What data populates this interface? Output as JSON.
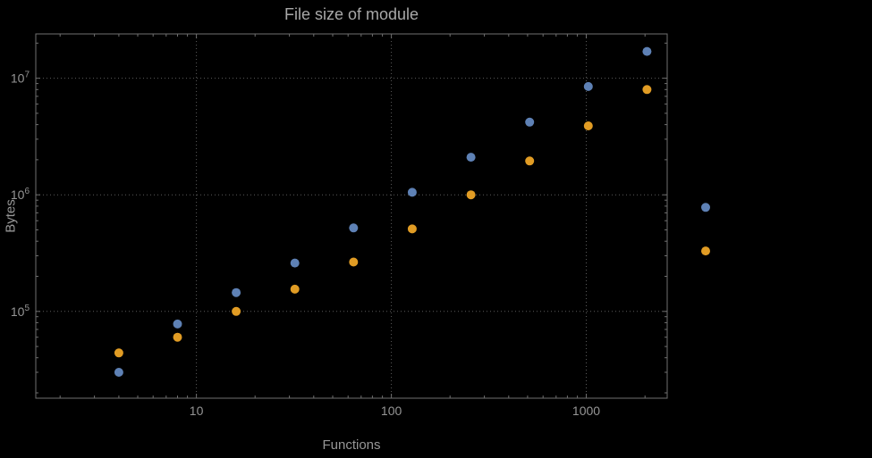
{
  "chart_data": {
    "type": "scatter",
    "title": "File size of module",
    "xlabel": "Functions",
    "ylabel": "Bytes",
    "x_scale": "log",
    "y_scale": "log",
    "xlim": [
      1.5,
      2600
    ],
    "ylim": [
      18000,
      24000000
    ],
    "grid": "dotted-at-major-ticks",
    "legend": "none",
    "x_ticks": [
      {
        "value": 10,
        "label": "10"
      },
      {
        "value": 100,
        "label": "100"
      },
      {
        "value": 1000,
        "label": "1000"
      }
    ],
    "y_ticks": [
      {
        "value": 100000,
        "base": "10",
        "exp": "5"
      },
      {
        "value": 1000000,
        "base": "10",
        "exp": "6"
      },
      {
        "value": 10000000,
        "base": "10",
        "exp": "7"
      }
    ],
    "colors": {
      "background": "#000000",
      "frame": "#6f6f6f",
      "grid": "#5c5c5c",
      "tick_text": "#959595",
      "title_text": "#a8a8a8",
      "series_blue": "#5e81b5",
      "series_orange": "#e19c24"
    },
    "series": [
      {
        "name": "blue-series",
        "color": "#5e81b5",
        "points": [
          [
            4,
            30000
          ],
          [
            8,
            78000
          ],
          [
            16,
            145000
          ],
          [
            32,
            260000
          ],
          [
            64,
            520000
          ],
          [
            128,
            1050000
          ],
          [
            256,
            2100000
          ],
          [
            512,
            4200000
          ],
          [
            1024,
            8500000
          ],
          [
            2048,
            17000000
          ],
          [
            4096,
            780000
          ]
        ]
      },
      {
        "name": "orange-series",
        "color": "#e19c24",
        "points": [
          [
            4,
            44000
          ],
          [
            8,
            60000
          ],
          [
            16,
            100000
          ],
          [
            32,
            155000
          ],
          [
            64,
            265000
          ],
          [
            128,
            510000
          ],
          [
            256,
            1000000
          ],
          [
            512,
            1950000
          ],
          [
            1024,
            3900000
          ],
          [
            2048,
            8000000
          ],
          [
            4096,
            330000
          ]
        ]
      }
    ]
  }
}
